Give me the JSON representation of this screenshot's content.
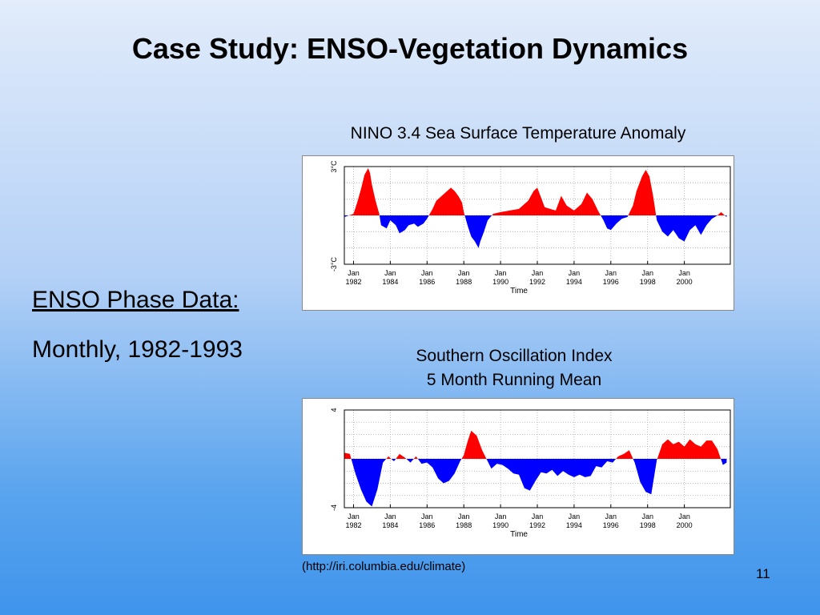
{
  "slide": {
    "title": "Case Study: ENSO-Vegetation Dynamics",
    "left_heading": "ENSO Phase Data:",
    "left_sub": "Monthly, 1982-1993",
    "source": "(http://iri.columbia.edu/climate)",
    "page_number": "11"
  },
  "colors": {
    "positive": "#ff0000",
    "negative": "#0000ff",
    "grid": "#a8a8a8"
  },
  "chart_data": [
    {
      "type": "area",
      "title": "NINO 3.4 Sea Surface Temperature Anomaly",
      "xlabel": "Time",
      "ylabel": "",
      "y_tick_labels": [
        "3°C",
        "-3°C"
      ],
      "x_tick_labels": [
        [
          "Jan",
          "1982"
        ],
        [
          "Jan",
          "1984"
        ],
        [
          "Jan",
          "1986"
        ],
        [
          "Jan",
          "1988"
        ],
        [
          "Jan",
          "1990"
        ],
        [
          "Jan",
          "1992"
        ],
        [
          "Jan",
          "1994"
        ],
        [
          "Jan",
          "1996"
        ],
        [
          "Jan",
          "1998"
        ],
        [
          "Jan",
          "2000"
        ]
      ],
      "x_ticks": [
        1982,
        1984,
        1986,
        1988,
        1990,
        1992,
        1994,
        1996,
        1998,
        2000
      ],
      "xlim": [
        1981.5,
        2002.5
      ],
      "ylim": [
        -3,
        3
      ],
      "grid": true,
      "x": [
        1981.5,
        1982.0,
        1982.2,
        1982.4,
        1982.6,
        1982.8,
        1982.9,
        1983.0,
        1983.2,
        1983.4,
        1983.5,
        1983.8,
        1984.0,
        1984.3,
        1984.5,
        1984.8,
        1985.0,
        1985.3,
        1985.5,
        1985.8,
        1986.0,
        1986.3,
        1986.5,
        1986.8,
        1987.0,
        1987.3,
        1987.5,
        1987.7,
        1987.9,
        1988.0,
        1988.2,
        1988.4,
        1988.6,
        1988.8,
        1988.9,
        1989.1,
        1989.3,
        1989.6,
        1990.0,
        1990.5,
        1991.0,
        1991.5,
        1991.8,
        1992.0,
        1992.2,
        1992.4,
        1992.7,
        1993.0,
        1993.3,
        1993.6,
        1994.0,
        1994.4,
        1994.7,
        1995.0,
        1995.3,
        1995.6,
        1995.8,
        1996.0,
        1996.3,
        1996.6,
        1996.9,
        1997.2,
        1997.4,
        1997.7,
        1997.9,
        1998.1,
        1998.3,
        1998.5,
        1998.8,
        1999.1,
        1999.4,
        1999.7,
        2000.0,
        2000.3,
        2000.6,
        2000.9,
        2001.2,
        2001.5,
        2001.8,
        2002.0,
        2002.3
      ],
      "values": [
        -0.1,
        0.1,
        0.8,
        1.6,
        2.5,
        2.9,
        2.6,
        1.9,
        0.9,
        0.1,
        -0.6,
        -0.8,
        -0.3,
        -0.6,
        -1.1,
        -0.9,
        -0.6,
        -0.5,
        -0.7,
        -0.5,
        -0.2,
        0.4,
        0.9,
        1.2,
        1.4,
        1.7,
        1.5,
        1.2,
        0.8,
        0.2,
        -0.6,
        -1.3,
        -1.6,
        -2.0,
        -1.6,
        -1.0,
        -0.3,
        0.1,
        0.2,
        0.3,
        0.4,
        0.9,
        1.5,
        1.7,
        1.1,
        0.5,
        0.4,
        0.3,
        1.2,
        0.6,
        0.3,
        0.7,
        1.4,
        1.0,
        0.3,
        -0.3,
        -0.8,
        -0.9,
        -0.5,
        -0.2,
        -0.1,
        0.6,
        1.5,
        2.4,
        2.8,
        2.4,
        1.2,
        -0.3,
        -1.0,
        -1.3,
        -0.9,
        -1.4,
        -1.6,
        -0.9,
        -0.6,
        -1.2,
        -0.6,
        -0.2,
        0.0,
        0.2,
        -0.1
      ]
    },
    {
      "type": "area",
      "title": "Southern Oscillation Index\n5 Month Running Mean",
      "xlabel": "Time",
      "ylabel": "",
      "y_tick_labels": [
        "4",
        "-4"
      ],
      "x_tick_labels": [
        [
          "Jan",
          "1982"
        ],
        [
          "Jan",
          "1984"
        ],
        [
          "Jan",
          "1986"
        ],
        [
          "Jan",
          "1988"
        ],
        [
          "Jan",
          "1990"
        ],
        [
          "Jan",
          "1992"
        ],
        [
          "Jan",
          "1994"
        ],
        [
          "Jan",
          "1996"
        ],
        [
          "Jan",
          "1998"
        ],
        [
          "Jan",
          "2000"
        ]
      ],
      "x_ticks": [
        1982,
        1984,
        1986,
        1988,
        1990,
        1992,
        1994,
        1996,
        1998,
        2000
      ],
      "xlim": [
        1981.5,
        2002.5
      ],
      "ylim": [
        -4,
        4
      ],
      "grid": true,
      "x": [
        1981.5,
        1981.8,
        1982.1,
        1982.4,
        1982.7,
        1983.0,
        1983.3,
        1983.6,
        1983.9,
        1984.2,
        1984.5,
        1984.8,
        1985.1,
        1985.4,
        1985.7,
        1986.0,
        1986.3,
        1986.6,
        1986.9,
        1987.2,
        1987.5,
        1987.8,
        1988.0,
        1988.2,
        1988.4,
        1988.7,
        1989.0,
        1989.3,
        1989.5,
        1989.8,
        1990.1,
        1990.4,
        1990.7,
        1991.0,
        1991.3,
        1991.6,
        1991.9,
        1992.2,
        1992.5,
        1992.8,
        1993.1,
        1993.4,
        1993.7,
        1994.0,
        1994.3,
        1994.6,
        1994.9,
        1995.2,
        1995.5,
        1995.8,
        1996.1,
        1996.4,
        1996.7,
        1997.0,
        1997.3,
        1997.6,
        1997.9,
        1998.2,
        1998.5,
        1998.8,
        1999.1,
        1999.4,
        1999.7,
        2000.0,
        2000.3,
        2000.6,
        2000.9,
        2001.2,
        2001.5,
        2001.8,
        2002.1,
        2002.3
      ],
      "values": [
        0.5,
        0.4,
        -1.2,
        -2.5,
        -3.5,
        -3.9,
        -2.5,
        -0.3,
        0.2,
        -0.2,
        0.4,
        0.1,
        -0.3,
        0.2,
        -0.4,
        -0.3,
        -0.7,
        -1.6,
        -2.0,
        -1.8,
        -1.2,
        -0.2,
        0.3,
        1.4,
        2.3,
        1.9,
        0.7,
        -0.2,
        -0.8,
        -0.4,
        -0.5,
        -0.8,
        -1.2,
        -1.3,
        -2.4,
        -2.6,
        -1.8,
        -1.1,
        -1.2,
        -0.9,
        -1.4,
        -1.0,
        -1.3,
        -1.5,
        -1.3,
        -1.5,
        -1.4,
        -0.6,
        -0.7,
        -0.2,
        -0.3,
        0.2,
        0.4,
        0.7,
        -0.3,
        -1.9,
        -2.7,
        -2.9,
        -0.1,
        1.2,
        1.6,
        1.2,
        1.4,
        1.0,
        1.6,
        1.2,
        1.0,
        1.5,
        1.5,
        0.8,
        -0.5,
        -0.3
      ]
    }
  ]
}
